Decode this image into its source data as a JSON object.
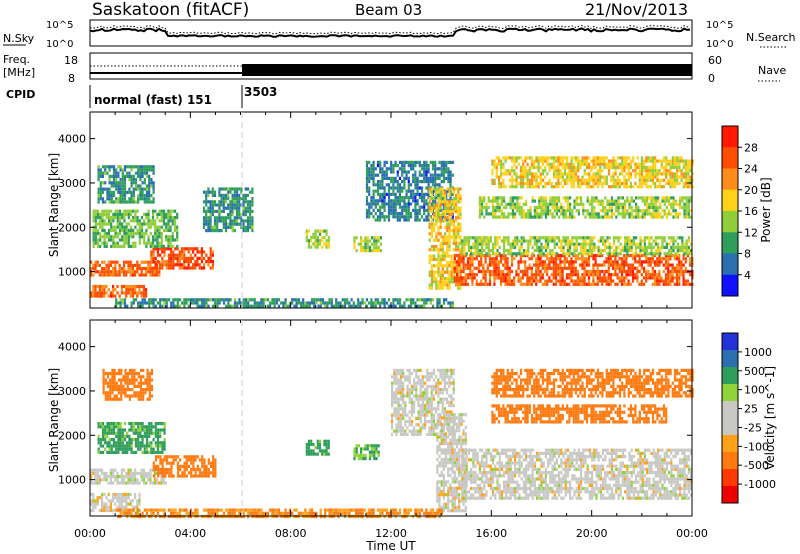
{
  "header": {
    "title": "Saskatoon (fitACF)",
    "beam": "Beam 03",
    "date": "21/Nov/2013"
  },
  "noise_panel": {
    "left_label": "N.Sky",
    "right_label": "N.Search",
    "left_ticks": [
      "10^5",
      "10^0"
    ],
    "right_ticks": [
      "10^5",
      "10^0"
    ]
  },
  "freq_panel": {
    "left_label_1": "Freq.",
    "left_label_2": "[MHz]",
    "left_ticks": [
      "18",
      "8"
    ],
    "right_ticks": [
      "60",
      "0"
    ],
    "right_label": "Nave"
  },
  "cpid": {
    "label": "CPID",
    "segments": [
      {
        "text": "normal (fast) 151",
        "start_hour": 0
      },
      {
        "text": "3503",
        "start_hour": 6
      }
    ]
  },
  "x_axis": {
    "label": "Time UT",
    "ticks": [
      "00:00",
      "04:00",
      "08:00",
      "12:00",
      "16:00",
      "20:00",
      "00:00"
    ]
  },
  "power_panel": {
    "ylabel": "Slant Range [km]",
    "yticks": [
      "4000",
      "3000",
      "2000",
      "1000"
    ],
    "colorbar_label": "Power [dB]",
    "colorbar_ticks": [
      "28",
      "24",
      "20",
      "16",
      "12",
      "8",
      "4"
    ],
    "colorbar_colors": [
      "#ff1a00",
      "#ff4d00",
      "#ff8c1a",
      "#ffd11a",
      "#8fce3a",
      "#2f9e5a",
      "#2a6fb0",
      "#1010ff"
    ]
  },
  "velocity_panel": {
    "ylabel": "Slant Range [km]",
    "yticks": [
      "4000",
      "3000",
      "2000",
      "1000"
    ],
    "colorbar_label": "Velocity [m s^-1]",
    "colorbar_ticks": [
      "1000",
      "500",
      "100",
      "25",
      "-25",
      "-100",
      "-500",
      "-1000"
    ],
    "colorbar_colors": [
      "#2232d6",
      "#2a6fb0",
      "#2f9e5a",
      "#8fd23a",
      "#c8c8c4",
      "#c8c8c4",
      "#ffa21a",
      "#ff7a10",
      "#ff3a00",
      "#ee0000"
    ]
  },
  "chart_data": [
    {
      "type": "heatmap",
      "title": "Power",
      "xlabel": "Time UT",
      "ylabel": "Slant Range [km]",
      "x_range_hours": [
        0,
        24
      ],
      "y_range_km": [
        180,
        4600
      ],
      "color_range_db": [
        0,
        32
      ],
      "regions": [
        {
          "t": [
            0.0,
            2.8
          ],
          "r": [
            900,
            1250
          ],
          "db": 26
        },
        {
          "t": [
            2.4,
            4.9
          ],
          "r": [
            1050,
            1550
          ],
          "db": 28
        },
        {
          "t": [
            0.1,
            3.5
          ],
          "r": [
            1600,
            2400
          ],
          "db": 12
        },
        {
          "t": [
            0.3,
            2.5
          ],
          "r": [
            2600,
            3400
          ],
          "db": 8
        },
        {
          "t": [
            0.0,
            2.2
          ],
          "r": [
            450,
            700
          ],
          "db": 26
        },
        {
          "t": [
            4.5,
            6.5
          ],
          "r": [
            1900,
            2900
          ],
          "db": 8
        },
        {
          "t": [
            8.6,
            9.5
          ],
          "r": [
            1550,
            1950
          ],
          "db": 14
        },
        {
          "t": [
            10.5,
            11.6
          ],
          "r": [
            1450,
            1800
          ],
          "db": 14
        },
        {
          "t": [
            11.0,
            14.5
          ],
          "r": [
            2200,
            3500
          ],
          "db": 6
        },
        {
          "t": [
            13.5,
            14.8
          ],
          "r": [
            600,
            2900
          ],
          "db": 18
        },
        {
          "t": [
            14.5,
            24.0
          ],
          "r": [
            700,
            1400
          ],
          "db": 27
        },
        {
          "t": [
            14.8,
            24.0
          ],
          "r": [
            1400,
            1800
          ],
          "db": 14
        },
        {
          "t": [
            15.5,
            24.0
          ],
          "r": [
            2200,
            2700
          ],
          "db": 14
        },
        {
          "t": [
            16.0,
            24.0
          ],
          "r": [
            2900,
            3600
          ],
          "db": 18
        },
        {
          "t": [
            1.0,
            14.5
          ],
          "r": [
            200,
            400
          ],
          "db": 8
        }
      ]
    },
    {
      "type": "heatmap",
      "title": "Velocity",
      "xlabel": "Time UT",
      "ylabel": "Slant Range [km]",
      "x_range_hours": [
        0,
        24
      ],
      "y_range_km": [
        180,
        4600
      ],
      "color_range_ms": [
        -1000,
        1000
      ],
      "regions": [
        {
          "t": [
            0.0,
            3.0
          ],
          "r": [
            900,
            1250
          ],
          "v": 0
        },
        {
          "t": [
            0.0,
            2.0
          ],
          "r": [
            300,
            700
          ],
          "v": 0
        },
        {
          "t": [
            2.5,
            5.0
          ],
          "r": [
            1050,
            1550
          ],
          "v": -200
        },
        {
          "t": [
            0.3,
            3.0
          ],
          "r": [
            1600,
            2300
          ],
          "v": 80
        },
        {
          "t": [
            0.5,
            2.5
          ],
          "r": [
            2800,
            3500
          ],
          "v": -200
        },
        {
          "t": [
            8.6,
            9.5
          ],
          "r": [
            1550,
            1900
          ],
          "v": 80
        },
        {
          "t": [
            10.5,
            11.5
          ],
          "r": [
            1500,
            1800
          ],
          "v": 60
        },
        {
          "t": [
            12.0,
            14.5
          ],
          "r": [
            2000,
            3500
          ],
          "v": 0
        },
        {
          "t": [
            13.8,
            15.0
          ],
          "r": [
            300,
            2500
          ],
          "v": 0
        },
        {
          "t": [
            14.8,
            24.0
          ],
          "r": [
            600,
            1700
          ],
          "v": 0
        },
        {
          "t": [
            16.0,
            23.0
          ],
          "r": [
            2300,
            2700
          ],
          "v": -200
        },
        {
          "t": [
            16.0,
            24.0
          ],
          "r": [
            2900,
            3500
          ],
          "v": -200
        },
        {
          "t": [
            1.0,
            14.0
          ],
          "r": [
            200,
            350
          ],
          "v": -100
        }
      ]
    }
  ]
}
